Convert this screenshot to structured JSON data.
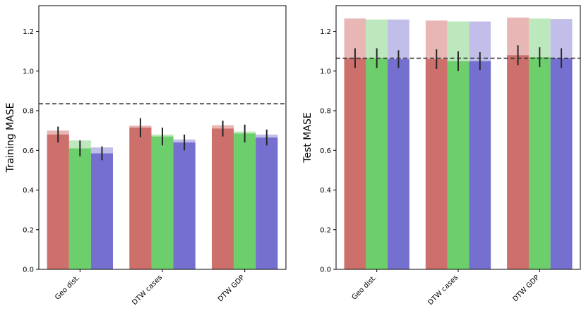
{
  "chart_data": [
    {
      "type": "bar",
      "ylabel": "Training MASE",
      "categories": [
        "Geo dist.",
        "DTW cases",
        "DTW GDP"
      ],
      "ylim": [
        0,
        1.33
      ],
      "yticks": [
        0.0,
        0.2,
        0.4,
        0.6,
        0.8,
        1.0,
        1.2
      ],
      "ytick_labels": [
        "0.0",
        "0.2",
        "0.4",
        "0.6",
        "0.8",
        "1.0",
        "1.2"
      ],
      "reference_line": 0.835,
      "series": [
        {
          "color": "#cd6f6a",
          "light_color": "#e8b6b4",
          "values": [
            0.68,
            0.715,
            0.71
          ],
          "light_values": [
            0.7,
            0.725,
            0.727
          ],
          "errors": [
            0.04,
            0.048,
            0.04
          ]
        },
        {
          "color": "#6ccf6c",
          "light_color": "#bde8bd",
          "values": [
            0.61,
            0.67,
            0.685
          ],
          "light_values": [
            0.65,
            0.68,
            0.695
          ],
          "errors": [
            0.04,
            0.045,
            0.045
          ]
        },
        {
          "color": "#7570cf",
          "light_color": "#c1bfea",
          "values": [
            0.585,
            0.64,
            0.665
          ],
          "light_values": [
            0.615,
            0.655,
            0.68
          ],
          "errors": [
            0.035,
            0.04,
            0.04
          ]
        }
      ]
    },
    {
      "type": "bar",
      "ylabel": "Test MASE",
      "categories": [
        "Geo dist.",
        "DTW cases",
        "DTW GDP"
      ],
      "ylim": [
        0,
        1.33
      ],
      "yticks": [
        0.0,
        0.2,
        0.4,
        0.6,
        0.8,
        1.0,
        1.2
      ],
      "ytick_labels": [
        "0.0",
        "0.2",
        "0.4",
        "0.6",
        "0.8",
        "1.0",
        "1.2"
      ],
      "reference_line": 1.065,
      "series": [
        {
          "color": "#cd6f6a",
          "light_color": "#e8b6b4",
          "values": [
            1.065,
            1.06,
            1.08
          ],
          "light_values": [
            1.265,
            1.255,
            1.27
          ],
          "errors": [
            0.05,
            0.05,
            0.05
          ]
        },
        {
          "color": "#6ccf6c",
          "light_color": "#bde8bd",
          "values": [
            1.065,
            1.05,
            1.07
          ],
          "light_values": [
            1.26,
            1.25,
            1.265
          ],
          "errors": [
            0.05,
            0.05,
            0.05
          ]
        },
        {
          "color": "#7570cf",
          "light_color": "#c1bfea",
          "values": [
            1.06,
            1.05,
            1.065
          ],
          "light_values": [
            1.26,
            1.25,
            1.262
          ],
          "errors": [
            0.045,
            0.045,
            0.05
          ]
        }
      ]
    }
  ]
}
